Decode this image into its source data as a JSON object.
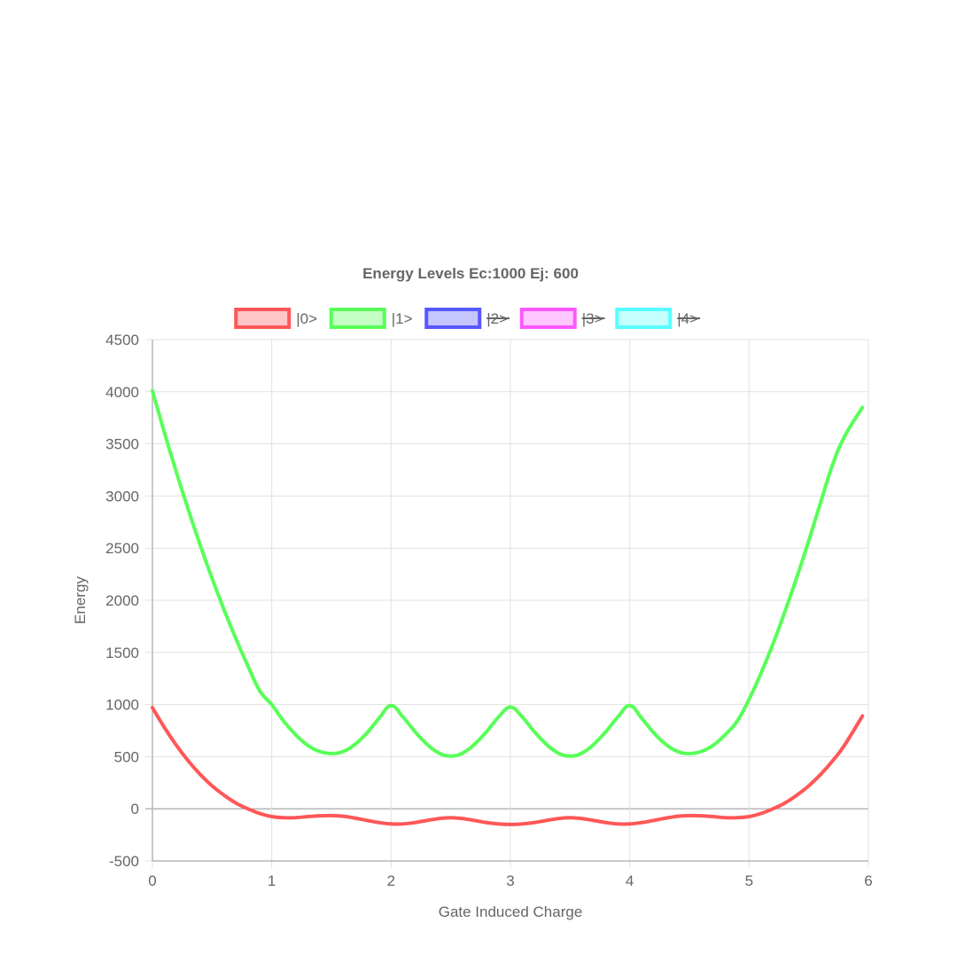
{
  "chart_data": {
    "type": "line",
    "title": "Energy Levels Ec:1000 Ej: 600",
    "xlabel": "Gate Induced Charge",
    "ylabel": "Energy",
    "xlim": [
      0,
      6
    ],
    "ylim": [
      -500,
      4500
    ],
    "x_ticks": [
      "0",
      "1",
      "2",
      "3",
      "4",
      "5",
      "6"
    ],
    "y_ticks": [
      "4500",
      "4000",
      "3500",
      "3000",
      "2500",
      "2000",
      "1500",
      "1000",
      "500",
      "0",
      "-500"
    ],
    "grid": true,
    "legend_position": "top",
    "series": [
      {
        "name": "|0>",
        "hidden": false,
        "color": "#ff5757",
        "fill": "#ffc6c6",
        "points": [
          [
            0,
            970
          ],
          [
            0.1,
            780
          ],
          [
            0.2,
            610
          ],
          [
            0.3,
            460
          ],
          [
            0.4,
            330
          ],
          [
            0.5,
            220
          ],
          [
            0.6,
            130
          ],
          [
            0.7,
            55
          ],
          [
            0.8,
            0
          ],
          [
            0.9,
            -45
          ],
          [
            1.0,
            -75
          ],
          [
            1.1,
            -85
          ],
          [
            1.2,
            -85
          ],
          [
            1.3,
            -75
          ],
          [
            1.4,
            -67
          ],
          [
            1.5,
            -65
          ],
          [
            1.6,
            -72
          ],
          [
            1.7,
            -90
          ],
          [
            1.8,
            -112
          ],
          [
            1.9,
            -132
          ],
          [
            2.0,
            -145
          ],
          [
            2.1,
            -145
          ],
          [
            2.2,
            -132
          ],
          [
            2.3,
            -112
          ],
          [
            2.4,
            -94
          ],
          [
            2.5,
            -85
          ],
          [
            2.6,
            -94
          ],
          [
            2.7,
            -112
          ],
          [
            2.8,
            -132
          ],
          [
            2.9,
            -145
          ],
          [
            3.0,
            -150
          ],
          [
            3.1,
            -145
          ],
          [
            3.2,
            -132
          ],
          [
            3.3,
            -112
          ],
          [
            3.4,
            -94
          ],
          [
            3.5,
            -85
          ],
          [
            3.6,
            -94
          ],
          [
            3.7,
            -112
          ],
          [
            3.8,
            -132
          ],
          [
            3.9,
            -145
          ],
          [
            4.0,
            -145
          ],
          [
            4.1,
            -132
          ],
          [
            4.2,
            -112
          ],
          [
            4.3,
            -90
          ],
          [
            4.4,
            -72
          ],
          [
            4.5,
            -65
          ],
          [
            4.6,
            -67
          ],
          [
            4.7,
            -75
          ],
          [
            4.8,
            -85
          ],
          [
            4.9,
            -85
          ],
          [
            5.0,
            -75
          ],
          [
            5.1,
            -45
          ],
          [
            5.2,
            0
          ],
          [
            5.3,
            55
          ],
          [
            5.4,
            130
          ],
          [
            5.5,
            220
          ],
          [
            5.6,
            330
          ],
          [
            5.7,
            460
          ],
          [
            5.8,
            610
          ],
          [
            5.95,
            890
          ]
        ]
      },
      {
        "name": "|1>",
        "hidden": false,
        "color": "#57ff57",
        "fill": "#c6ffc6",
        "points": [
          [
            0,
            4010
          ],
          [
            0.1,
            3610
          ],
          [
            0.2,
            3230
          ],
          [
            0.3,
            2870
          ],
          [
            0.4,
            2530
          ],
          [
            0.5,
            2210
          ],
          [
            0.6,
            1910
          ],
          [
            0.7,
            1630
          ],
          [
            0.8,
            1370
          ],
          [
            0.9,
            1130
          ],
          [
            1.0,
            1000
          ],
          [
            1.1,
            840
          ],
          [
            1.2,
            710
          ],
          [
            1.3,
            610
          ],
          [
            1.4,
            550
          ],
          [
            1.5,
            530
          ],
          [
            1.6,
            550
          ],
          [
            1.7,
            620
          ],
          [
            1.8,
            730
          ],
          [
            1.9,
            870
          ],
          [
            2.0,
            990
          ],
          [
            2.1,
            880
          ],
          [
            2.2,
            740
          ],
          [
            2.3,
            620
          ],
          [
            2.4,
            535
          ],
          [
            2.5,
            505
          ],
          [
            2.6,
            535
          ],
          [
            2.7,
            620
          ],
          [
            2.8,
            740
          ],
          [
            2.9,
            880
          ],
          [
            3.0,
            975
          ],
          [
            3.1,
            880
          ],
          [
            3.2,
            740
          ],
          [
            3.3,
            620
          ],
          [
            3.4,
            535
          ],
          [
            3.5,
            505
          ],
          [
            3.6,
            535
          ],
          [
            3.7,
            620
          ],
          [
            3.8,
            740
          ],
          [
            3.9,
            880
          ],
          [
            4.0,
            990
          ],
          [
            4.1,
            870
          ],
          [
            4.2,
            730
          ],
          [
            4.3,
            620
          ],
          [
            4.4,
            550
          ],
          [
            4.5,
            530
          ],
          [
            4.6,
            550
          ],
          [
            4.7,
            610
          ],
          [
            4.8,
            710
          ],
          [
            4.9,
            840
          ],
          [
            5.0,
            1050
          ],
          [
            5.1,
            1300
          ],
          [
            5.2,
            1580
          ],
          [
            5.3,
            1890
          ],
          [
            5.4,
            2220
          ],
          [
            5.5,
            2570
          ],
          [
            5.6,
            2940
          ],
          [
            5.7,
            3300
          ],
          [
            5.8,
            3570
          ],
          [
            5.95,
            3850
          ]
        ]
      },
      {
        "name": "|2>",
        "hidden": true,
        "color": "#5757ff",
        "fill": "#c6c6ff",
        "points": []
      },
      {
        "name": "|3>",
        "hidden": true,
        "color": "#ff57ff",
        "fill": "#ffc6ff",
        "points": []
      },
      {
        "name": "|4>",
        "hidden": true,
        "color": "#57ffff",
        "fill": "#c6ffff",
        "points": []
      }
    ]
  }
}
